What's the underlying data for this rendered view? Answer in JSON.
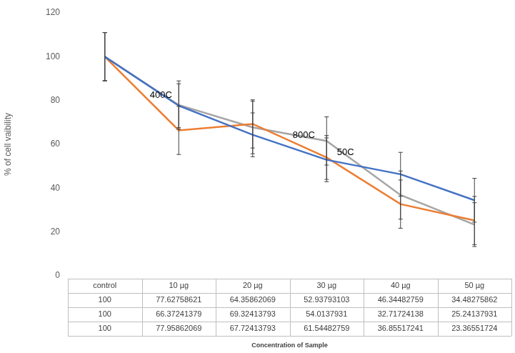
{
  "chart_data": {
    "type": "line",
    "x_label": "Concentration of Sample",
    "y_label": "% of cell vaibility",
    "categories": [
      "control",
      "10 µg",
      "20 µg",
      "30 µg",
      "40 µg",
      "50 µg"
    ],
    "series": [
      {
        "name": "50C",
        "color": "#4472c4",
        "values": [
          100,
          77.62758621,
          64.35862069,
          52.93793103,
          46.34482759,
          34.48275862
        ],
        "errors": [
          11,
          10,
          10,
          10,
          10,
          10
        ]
      },
      {
        "name": "400C",
        "color": "#ed7d31",
        "values": [
          100,
          66.37241379,
          69.32413793,
          54.0137931,
          32.71724138,
          25.24137931
        ],
        "errors": [
          11,
          11,
          11,
          10,
          11,
          11
        ]
      },
      {
        "name": "800C",
        "color": "#a5a5a5",
        "values": [
          100,
          77.95862069,
          67.72413793,
          61.54482759,
          36.85517241,
          23.36551724
        ],
        "errors": [
          11,
          11,
          12,
          11,
          11,
          10
        ]
      }
    ],
    "ylim": [
      0,
      120
    ],
    "yticks": [
      0,
      20,
      40,
      60,
      80,
      100,
      120
    ],
    "grid": false
  }
}
